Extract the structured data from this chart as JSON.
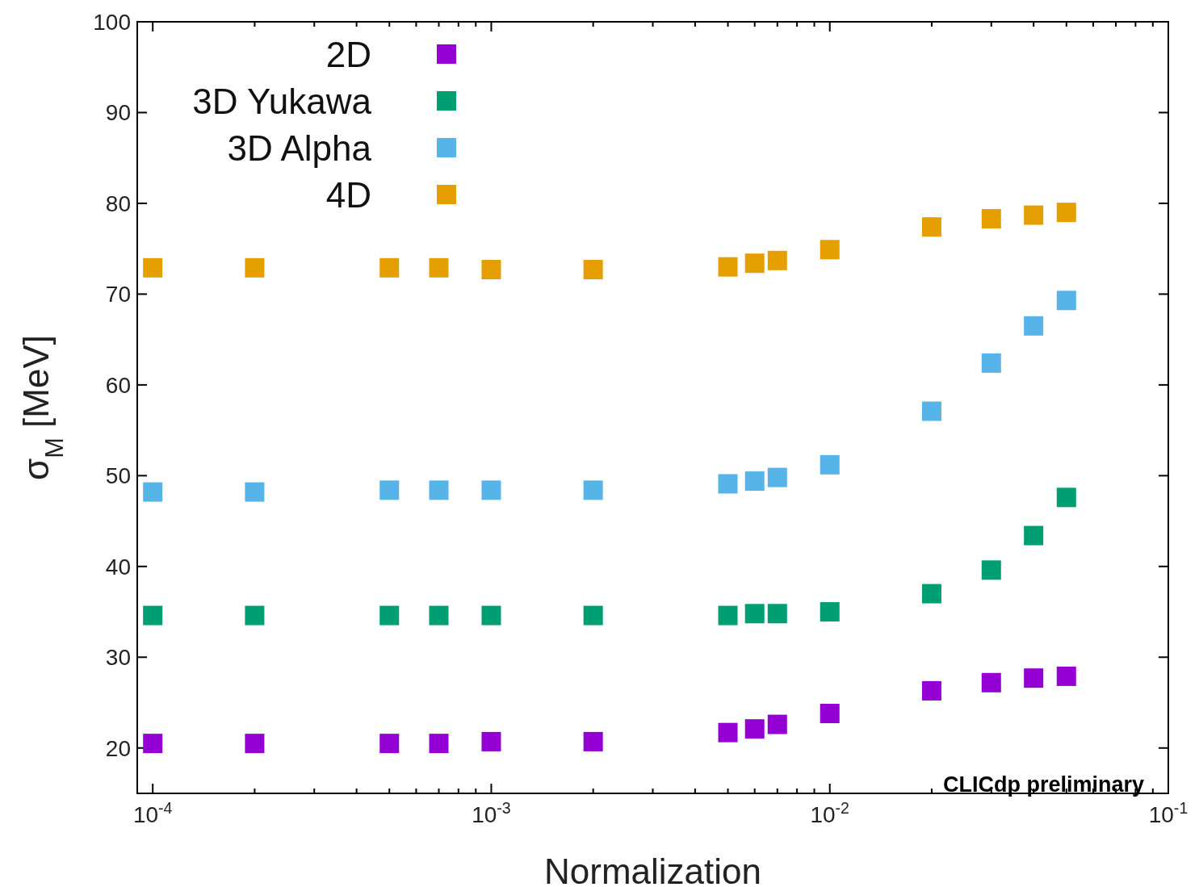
{
  "chart_data": {
    "type": "scatter",
    "xlabel": "Normalization",
    "ylabel": "σ$_{M}$ [MeV]",
    "log": "x",
    "marker": "square",
    "grid": false,
    "legend": "top left",
    "xlim": [
      9e-05,
      0.1
    ],
    "xticks": [
      {
        "value": 0.0001,
        "label": "10$^{-4}$"
      },
      {
        "value": 0.0002,
        "label": null
      },
      {
        "value": 0.0003,
        "label": null
      },
      {
        "value": 0.0004,
        "label": null
      },
      {
        "value": 0.0005,
        "label": null
      },
      {
        "value": 0.0006,
        "label": null
      },
      {
        "value": 0.0007,
        "label": null
      },
      {
        "value": 0.0008,
        "label": null
      },
      {
        "value": 0.0009,
        "label": null
      },
      {
        "value": 0.001,
        "label": "10$^{-3}$"
      },
      {
        "value": 0.002,
        "label": null
      },
      {
        "value": 0.003,
        "label": null
      },
      {
        "value": 0.004,
        "label": null
      },
      {
        "value": 0.005,
        "label": null
      },
      {
        "value": 0.006,
        "label": null
      },
      {
        "value": 0.007,
        "label": null
      },
      {
        "value": 0.008,
        "label": null
      },
      {
        "value": 0.009,
        "label": null
      },
      {
        "value": 0.01,
        "label": "10$^{-2}$"
      },
      {
        "value": 0.02,
        "label": null
      },
      {
        "value": 0.03,
        "label": null
      },
      {
        "value": 0.04,
        "label": null
      },
      {
        "value": 0.05,
        "label": null
      },
      {
        "value": 0.06,
        "label": null
      },
      {
        "value": 0.07,
        "label": null
      },
      {
        "value": 0.08,
        "label": null
      },
      {
        "value": 0.09,
        "label": null
      },
      {
        "value": 0.1,
        "label": "10$^{-1}$"
      }
    ],
    "ylim": [
      15,
      100
    ],
    "yticks": [
      20,
      30,
      40,
      50,
      60,
      70,
      80,
      90,
      100
    ],
    "x": [
      0.0001,
      0.0002,
      0.0005,
      0.0007,
      0.001,
      0.002,
      0.005,
      0.006,
      0.007,
      0.01,
      0.02,
      0.03,
      0.04,
      0.05
    ],
    "series": [
      {
        "name": "2D",
        "color": "#9400d3",
        "values": [
          20.5,
          20.5,
          20.5,
          20.5,
          20.7,
          20.7,
          21.7,
          22.1,
          22.6,
          23.8,
          26.3,
          27.2,
          27.7,
          27.9
        ]
      },
      {
        "name": "3D Yukawa",
        "color": "#009e73",
        "values": [
          34.6,
          34.6,
          34.6,
          34.6,
          34.6,
          34.6,
          34.6,
          34.8,
          34.8,
          35.0,
          37.0,
          39.6,
          43.4,
          47.6
        ]
      },
      {
        "name": "3D Alpha",
        "color": "#56b4e9",
        "values": [
          48.2,
          48.2,
          48.4,
          48.4,
          48.4,
          48.4,
          49.1,
          49.4,
          49.8,
          51.2,
          57.1,
          62.4,
          66.5,
          69.3
        ]
      },
      {
        "name": "4D",
        "color": "#e69f00",
        "values": [
          72.9,
          72.9,
          72.9,
          72.9,
          72.7,
          72.7,
          73.0,
          73.4,
          73.7,
          74.9,
          77.4,
          78.3,
          78.7,
          79.0
        ]
      }
    ],
    "annotations": [
      "CLICdp preliminary"
    ]
  }
}
